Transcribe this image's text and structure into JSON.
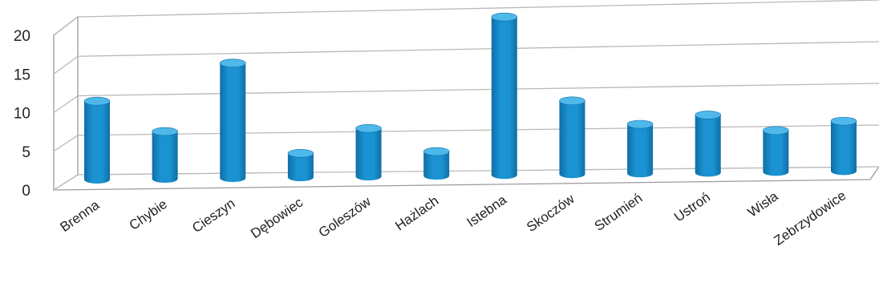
{
  "chart_data": {
    "type": "bar",
    "title": "",
    "xlabel": "",
    "ylabel": "",
    "categories": [
      "Brenna",
      "Chybie",
      "Cieszyn",
      "Dębowiec",
      "Goleszów",
      "Hażlach",
      "Istebna",
      "Skoczów",
      "Strumień",
      "Ustroń",
      "Wisła",
      "Zebrzydowice"
    ],
    "values": [
      10,
      6,
      14.5,
      3,
      6,
      3,
      19.5,
      9,
      6,
      7,
      5,
      6
    ],
    "ylim": [
      0,
      20
    ],
    "yticks": [
      "0",
      "5",
      "10",
      "15",
      "20"
    ],
    "grid": true,
    "legend": "none",
    "bar_style": "3d-cylinder",
    "colors": {
      "bar": "#1b93d2",
      "bar_top": "#4fb8ea",
      "bar_dark": "#0f6fa6"
    }
  }
}
